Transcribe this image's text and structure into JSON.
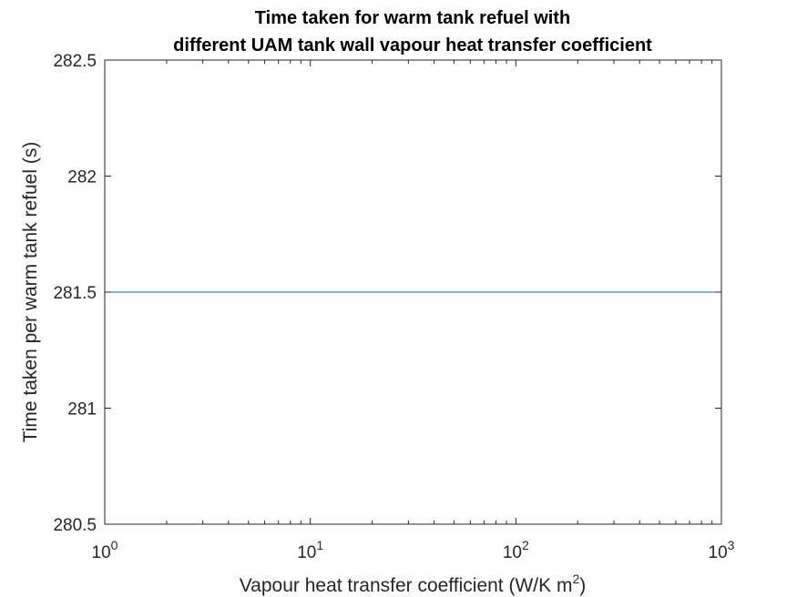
{
  "chart_data": {
    "type": "line",
    "title_lines": [
      "Time taken for warm tank refuel with",
      "different UAM tank wall vapour heat transfer coefficient"
    ],
    "xlabel": "Vapour heat transfer coefficient (W/K m",
    "xlabel_sup": "2",
    "xlabel_close": ")",
    "ylabel": "Time taken per warm tank refuel (s)",
    "x_scale": "log",
    "xlim": [
      1,
      1000
    ],
    "ylim": [
      280.5,
      282.5
    ],
    "x_ticks": [
      {
        "base": "10",
        "exp": "0",
        "value": 1
      },
      {
        "base": "10",
        "exp": "1",
        "value": 10
      },
      {
        "base": "10",
        "exp": "2",
        "value": 100
      },
      {
        "base": "10",
        "exp": "3",
        "value": 1000
      }
    ],
    "y_ticks": [
      {
        "label": "280.5",
        "value": 280.5
      },
      {
        "label": "281",
        "value": 281
      },
      {
        "label": "281.5",
        "value": 281.5
      },
      {
        "label": "282",
        "value": 282
      },
      {
        "label": "282.5",
        "value": 282.5
      }
    ],
    "grid": false,
    "series": [
      {
        "color": "#0072bd",
        "x": [
          1,
          1000
        ],
        "y": [
          281.5,
          281.5
        ]
      }
    ]
  }
}
